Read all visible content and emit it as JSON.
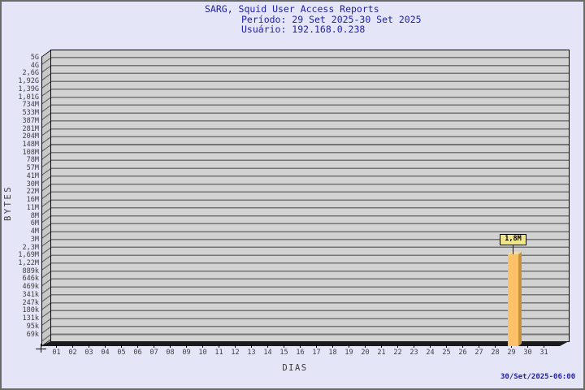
{
  "header": {
    "title": "SARG, Squid User Access Reports",
    "period": "Período: 29 Set 2025-30 Set 2025",
    "user": "Usuário: 192.168.0.238"
  },
  "footer": {
    "timestamp": "30/Set/2025-06:00"
  },
  "chart_data": {
    "type": "bar",
    "title": "SARG, Squid User Access Reports",
    "subtitle": "Período: 29 Set 2025-30 Set 2025",
    "user": "Usuário: 192.168.0.238",
    "xlabel": "DIAS",
    "ylabel": "BYTES",
    "grid": true,
    "legend_position": "none",
    "y_axis": {
      "scale": "logarithmic",
      "tick_labels": [
        "5G",
        "4G",
        "2,6G",
        "1,92G",
        "1,39G",
        "1,01G",
        "734M",
        "533M",
        "387M",
        "281M",
        "204M",
        "148M",
        "108M",
        "78M",
        "57M",
        "41M",
        "30M",
        "22M",
        "16M",
        "11M",
        "8M",
        "6M",
        "4M",
        "3M",
        "2,3M",
        "1,69M",
        "1,22M",
        "889k",
        "646k",
        "469k",
        "341k",
        "247k",
        "180k",
        "131k",
        "95k",
        "69k"
      ]
    },
    "x_axis": {
      "tick_labels": [
        "01",
        "02",
        "03",
        "04",
        "05",
        "06",
        "07",
        "08",
        "09",
        "10",
        "11",
        "12",
        "13",
        "14",
        "15",
        "16",
        "17",
        "18",
        "19",
        "20",
        "21",
        "22",
        "23",
        "24",
        "25",
        "26",
        "27",
        "28",
        "29",
        "30",
        "31"
      ]
    },
    "bars": [
      {
        "x": "29",
        "value_label": "1,8M",
        "value_bytes": 1800000
      }
    ],
    "colors": {
      "background": "#e4e5f7",
      "plot_band": "#d2d2d2",
      "grid_line": "#747474",
      "bar_front": "#fcc169",
      "bar_top": "#f0dca6",
      "bar_side": "#c6923a",
      "value_box": "#f0e68c",
      "title_text": "#2222a6"
    }
  }
}
